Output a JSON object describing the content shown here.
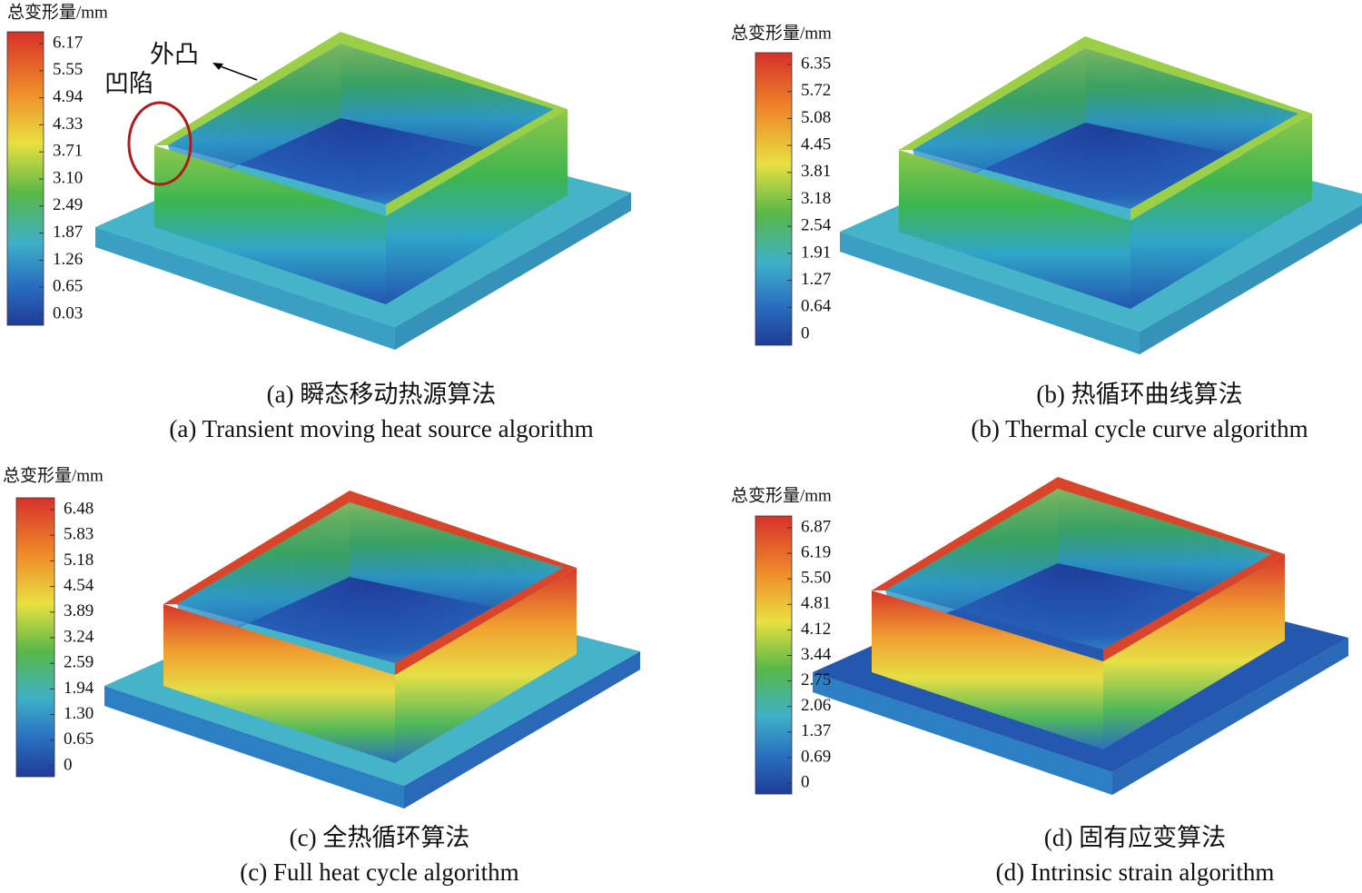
{
  "panels": [
    {
      "legend_title": "总变形量/mm",
      "legend_ticks": [
        "6.17",
        "5.55",
        "4.94",
        "4.33",
        "3.71",
        "3.10",
        "2.49",
        "1.87",
        "1.26",
        "0.65",
        "0.03"
      ],
      "caption_zh": "(a) 瞬态移动热源算法",
      "caption_en": "(a) Transient moving heat source algorithm"
    },
    {
      "legend_title": "总变形量/mm",
      "legend_ticks": [
        "6.35",
        "5.72",
        "5.08",
        "4.45",
        "3.81",
        "3.18",
        "2.54",
        "1.91",
        "1.27",
        "0.64",
        "0"
      ],
      "caption_zh": "(b) 热循环曲线算法",
      "caption_en": "(b) Thermal cycle curve algorithm"
    },
    {
      "legend_title": "总变形量/mm",
      "legend_ticks": [
        "6.48",
        "5.83",
        "5.18",
        "4.54",
        "3.89",
        "3.24",
        "2.59",
        "1.94",
        "1.30",
        "0.65",
        "0"
      ],
      "caption_zh": "(c) 全热循环算法",
      "caption_en": "(c) Full heat cycle algorithm"
    },
    {
      "legend_title": "总变形量/mm",
      "legend_ticks": [
        "6.87",
        "6.19",
        "5.50",
        "4.81",
        "4.12",
        "3.44",
        "2.75",
        "2.06",
        "1.37",
        "0.69",
        "0"
      ],
      "caption_zh": "(d) 固有应变算法",
      "caption_en": "(d) Intrinsic strain algorithm"
    }
  ],
  "annotations": {
    "bulge": "外凸",
    "dent": "凹陷"
  }
}
